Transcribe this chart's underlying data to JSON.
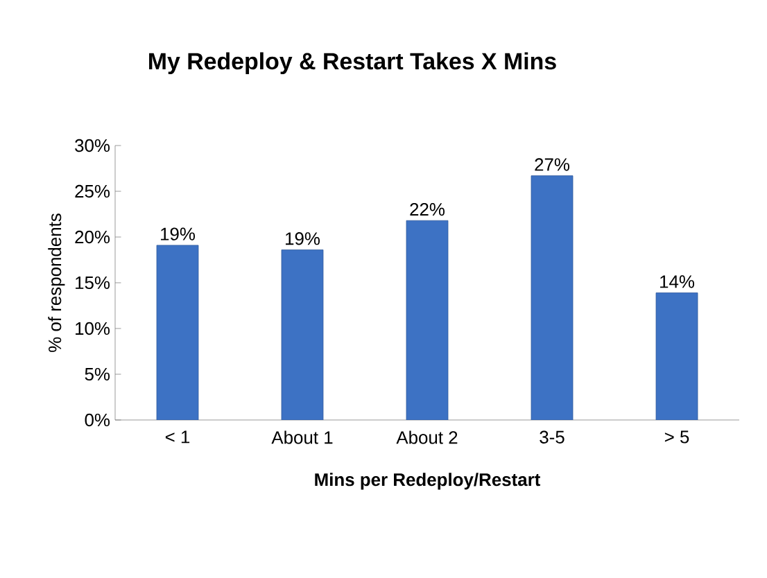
{
  "chart_data": {
    "type": "bar",
    "title": "My Redeploy  & Restart Takes X Mins",
    "xlabel": "Mins per Redeploy/Restart",
    "ylabel": "% of respondents",
    "categories": [
      "< 1",
      "About 1",
      "About 2",
      "3-5",
      "> 5"
    ],
    "values": [
      19.1,
      18.6,
      21.8,
      26.7,
      13.9
    ],
    "value_labels": [
      "19%",
      "19%",
      "22%",
      "27%",
      "14%"
    ],
    "color": "#3d72c4",
    "ylim": [
      0,
      30
    ],
    "yticks": [
      {
        "value": 0,
        "label": "0%"
      },
      {
        "value": 5,
        "label": "5%"
      },
      {
        "value": 10,
        "label": "10%"
      },
      {
        "value": 15,
        "label": "15%"
      },
      {
        "value": 20,
        "label": "20%"
      },
      {
        "value": 25,
        "label": "25%"
      },
      {
        "value": 30,
        "label": "30%"
      }
    ],
    "grid": false
  }
}
